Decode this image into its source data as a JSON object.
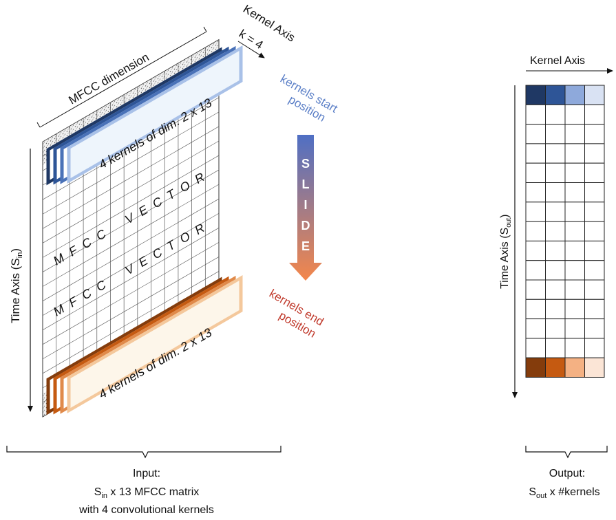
{
  "input_panel": {
    "mfcc_dimension_label": "MFCC dimension",
    "kernel_axis_label": "Kernel Axis",
    "kernel_count_label": "k = 4",
    "time_axis_label": "Time Axis (S",
    "time_axis_sub": "in",
    "time_axis_close": ")",
    "kernel_block_top_text": "4 kernels of dim. 2 x 13",
    "kernel_block_bottom_text": "4 kernels of dim. 2 x 13",
    "vector_rows": [
      {
        "left": "M F C C",
        "right": "V E C T O R"
      },
      {
        "left": "M F C C",
        "right": "V E C T O R"
      }
    ],
    "caption_line1": "Input:",
    "caption_line2_sub": "in",
    "caption_line2_main": "S",
    "caption_line2_rest": " x 13 MFCC matrix",
    "caption_line3": "with 4 convolutional kernels",
    "grid_columns": 13,
    "grid_rows": 19
  },
  "slide_annotation": {
    "start_label_line1": "kernels start",
    "start_label_line2": "position",
    "end_label_line1": "kernels end",
    "end_label_line2": "position",
    "slide_letters": [
      "S",
      "L",
      "I",
      "D",
      "E"
    ],
    "start_color": "#5b7fc7",
    "end_color": "#c0392b"
  },
  "output_panel": {
    "kernel_axis_label": "Kernel Axis",
    "time_axis_label": "Time Axis (S",
    "time_axis_sub": "out",
    "time_axis_close": ")",
    "caption_line1": "Output:",
    "caption_line2_main": "S",
    "caption_line2_sub": "out",
    "caption_line2_rest": "  x #kernels",
    "rows": 15,
    "columns": 4,
    "top_row_colors": [
      "#1f3864",
      "#2e5597",
      "#8ea9db",
      "#d9e2f3"
    ],
    "bottom_row_colors": [
      "#843c0c",
      "#c55a11",
      "#f4b183",
      "#fbe5d6"
    ]
  },
  "colors": {
    "kernel_blue_border": [
      "#1f3864",
      "#2e5597",
      "#4a72b8",
      "#a9c1e8"
    ],
    "kernel_blue_fill": "#eef5fc",
    "kernel_orange_border": [
      "#843c0c",
      "#c55a11",
      "#e08a4a",
      "#f4c89c"
    ],
    "kernel_orange_fill": "#fdf6ea",
    "slide_gradient_top": "#4f6fc4",
    "slide_gradient_bottom": "#f4874b"
  }
}
